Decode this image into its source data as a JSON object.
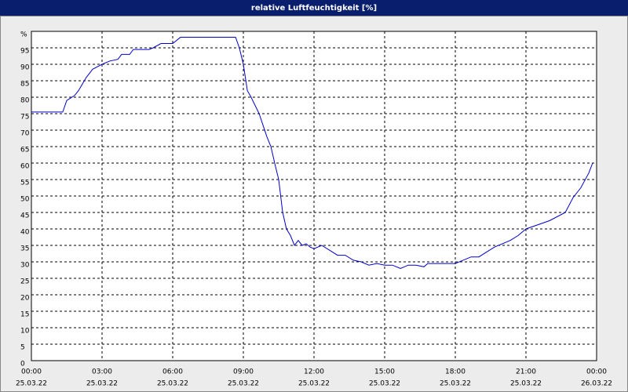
{
  "chart_data": {
    "type": "line",
    "title": "relative Luftfeuchtigkeit [%]",
    "x": [
      0,
      1.33,
      1.5,
      1.83,
      2,
      2.33,
      2.6,
      3,
      3.33,
      3.67,
      3.83,
      4.17,
      4.33,
      5,
      5.17,
      5.5,
      6,
      6.33,
      8.67,
      8.83,
      9,
      9.17,
      9.33,
      9.67,
      10,
      10.17,
      10.33,
      10.5,
      10.67,
      10.83,
      11,
      11.17,
      11.33,
      11.5,
      11.67,
      11.83,
      12,
      12.33,
      12.67,
      13,
      13.33,
      13.67,
      14,
      14.33,
      14.67,
      15,
      15.33,
      15.67,
      16,
      16.33,
      16.67,
      16.83,
      17.67,
      18,
      18.33,
      18.67,
      19,
      19.33,
      19.67,
      20.33,
      20.67,
      21,
      22,
      22.67,
      23,
      23.33,
      23.67,
      23.83
    ],
    "series": [
      {
        "name": "relative Luftfeuchtigkeit",
        "color": "#0000cc",
        "values": [
          75.5,
          75.5,
          79,
          80.5,
          82,
          86,
          88.5,
          90,
          91,
          91.5,
          93,
          93,
          94.5,
          94.5,
          95,
          96.3,
          96.3,
          98.2,
          98.2,
          95,
          90,
          82,
          80,
          75,
          68,
          65,
          60,
          55,
          45,
          40,
          38,
          35,
          36.5,
          35,
          35.5,
          34.5,
          34,
          35,
          33.5,
          32,
          32,
          30.5,
          30,
          29,
          29.5,
          29,
          29,
          28,
          29,
          29,
          28.5,
          29.5,
          29.5,
          29.5,
          30.5,
          31.5,
          31.5,
          33,
          34.5,
          36.5,
          38,
          40,
          42.5,
          45,
          49.5,
          52.5,
          57,
          60
        ]
      }
    ],
    "xlim": [
      0,
      24
    ],
    "xticks": [
      {
        "value": 0,
        "label": "00:00"
      },
      {
        "value": 3,
        "label": "03:00"
      },
      {
        "value": 6,
        "label": "06:00"
      },
      {
        "value": 9,
        "label": "09:00"
      },
      {
        "value": 12,
        "label": "12:00"
      },
      {
        "value": 15,
        "label": "15:00"
      },
      {
        "value": 18,
        "label": "18:00"
      },
      {
        "value": 21,
        "label": "21:00"
      },
      {
        "value": 24,
        "label": "00:00"
      }
    ],
    "xtick_dates": [
      "25.03.22",
      "25.03.22",
      "25.03.22",
      "25.03.22",
      "25.03.22",
      "25.03.22",
      "25.03.22",
      "25.03.22",
      "26.03.22"
    ],
    "ylim": [
      0,
      100
    ],
    "yticks": [
      0,
      5,
      10,
      15,
      20,
      25,
      30,
      35,
      40,
      45,
      50,
      55,
      60,
      65,
      70,
      75,
      80,
      85,
      90,
      95,
      {
        "value": 100,
        "label": "%"
      }
    ],
    "grid": true
  }
}
